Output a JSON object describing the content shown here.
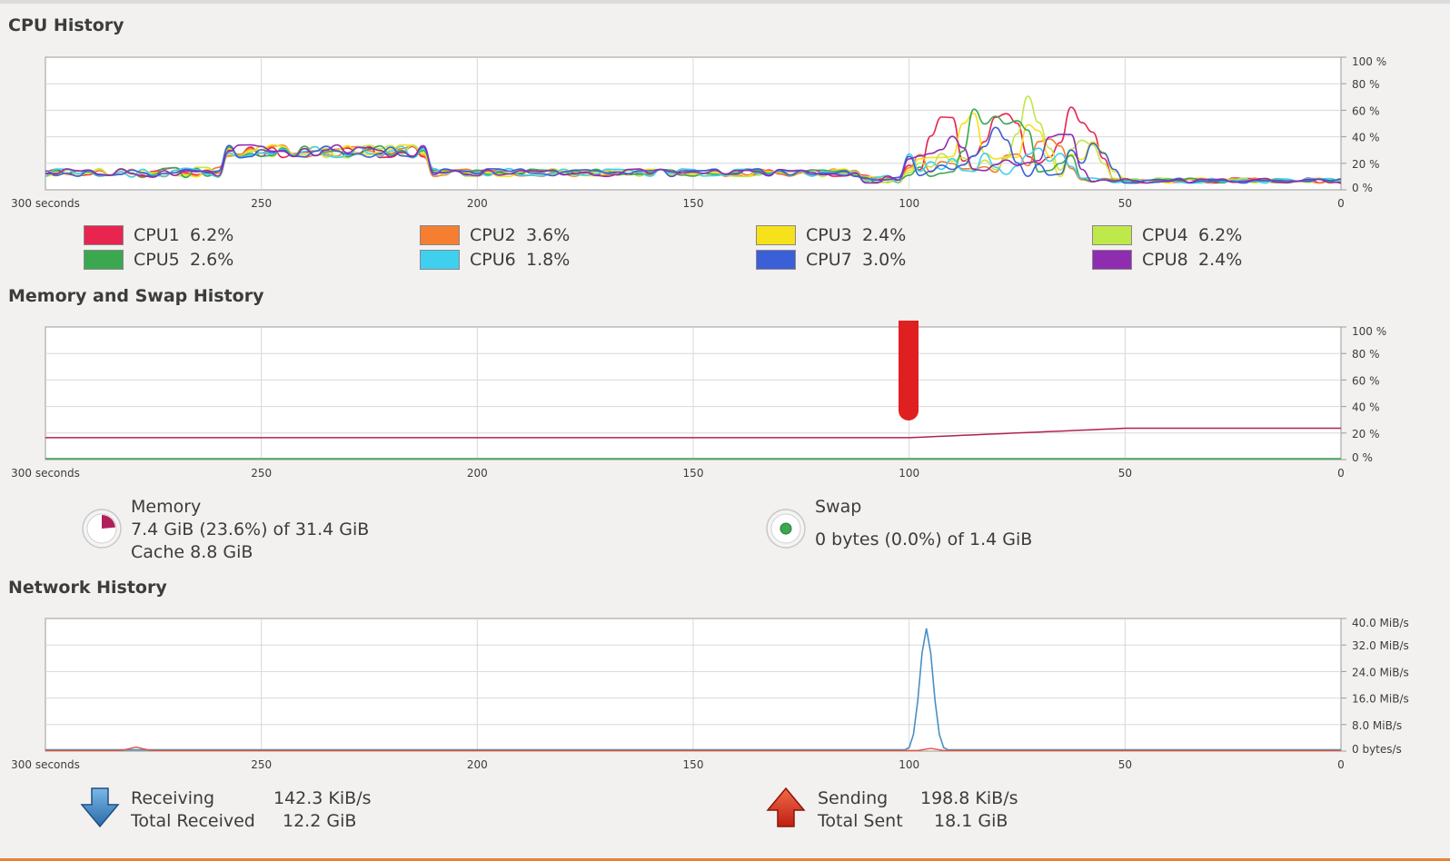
{
  "cpu": {
    "title": "CPU History",
    "x_ticks": [
      "300 seconds",
      "250",
      "200",
      "150",
      "100",
      "50",
      "0"
    ],
    "y_ticks": [
      "100 %",
      "80 %",
      "60 %",
      "40 %",
      "20 %",
      "0 %"
    ],
    "legend": [
      {
        "name": "CPU1",
        "value": "6.2%",
        "color": "#e8254f"
      },
      {
        "name": "CPU2",
        "value": "3.6%",
        "color": "#f57e30"
      },
      {
        "name": "CPU3",
        "value": "2.4%",
        "color": "#f6e11a"
      },
      {
        "name": "CPU4",
        "value": "6.2%",
        "color": "#bfe84a"
      },
      {
        "name": "CPU5",
        "value": "2.6%",
        "color": "#3ba850"
      },
      {
        "name": "CPU6",
        "value": "1.8%",
        "color": "#3fd0ef"
      },
      {
        "name": "CPU7",
        "value": "3.0%",
        "color": "#3b5fd6"
      },
      {
        "name": "CPU8",
        "value": "2.4%",
        "color": "#8f2db0"
      }
    ]
  },
  "memory": {
    "title": "Memory and Swap History",
    "x_ticks": [
      "300 seconds",
      "250",
      "200",
      "150",
      "100",
      "50",
      "0"
    ],
    "y_ticks": [
      "100 %",
      "80 %",
      "60 %",
      "40 %",
      "20 %",
      "0 %"
    ],
    "memory_label": "Memory",
    "memory_usage": "7.4 GiB (23.6%) of 31.4 GiB",
    "memory_cache": "Cache 8.8 GiB",
    "memory_color": "#b0205a",
    "swap_label": "Swap",
    "swap_usage": "0 bytes (0.0%) of 1.4 GiB",
    "swap_color": "#3ba850",
    "memory_level": 0.236,
    "swap_level": 0.0
  },
  "network": {
    "title": "Network History",
    "x_ticks": [
      "300 seconds",
      "250",
      "200",
      "150",
      "100",
      "50",
      "0"
    ],
    "y_ticks": [
      "40.0 MiB/s",
      "32.0 MiB/s",
      "24.0 MiB/s",
      "16.0 MiB/s",
      "8.0 MiB/s",
      "0 bytes/s"
    ],
    "receiving_label": "Receiving",
    "receiving_value": "142.3 KiB/s",
    "total_received_label": "Total Received",
    "total_received_value": "12.2 GiB",
    "sending_label": "Sending",
    "sending_value": "198.8 KiB/s",
    "total_sent_label": "Total Sent",
    "total_sent_value": "18.1 GiB",
    "receiving_color": "#4a8fc4",
    "sending_color": "#e8523a"
  },
  "annotation_color": "#e02020"
}
